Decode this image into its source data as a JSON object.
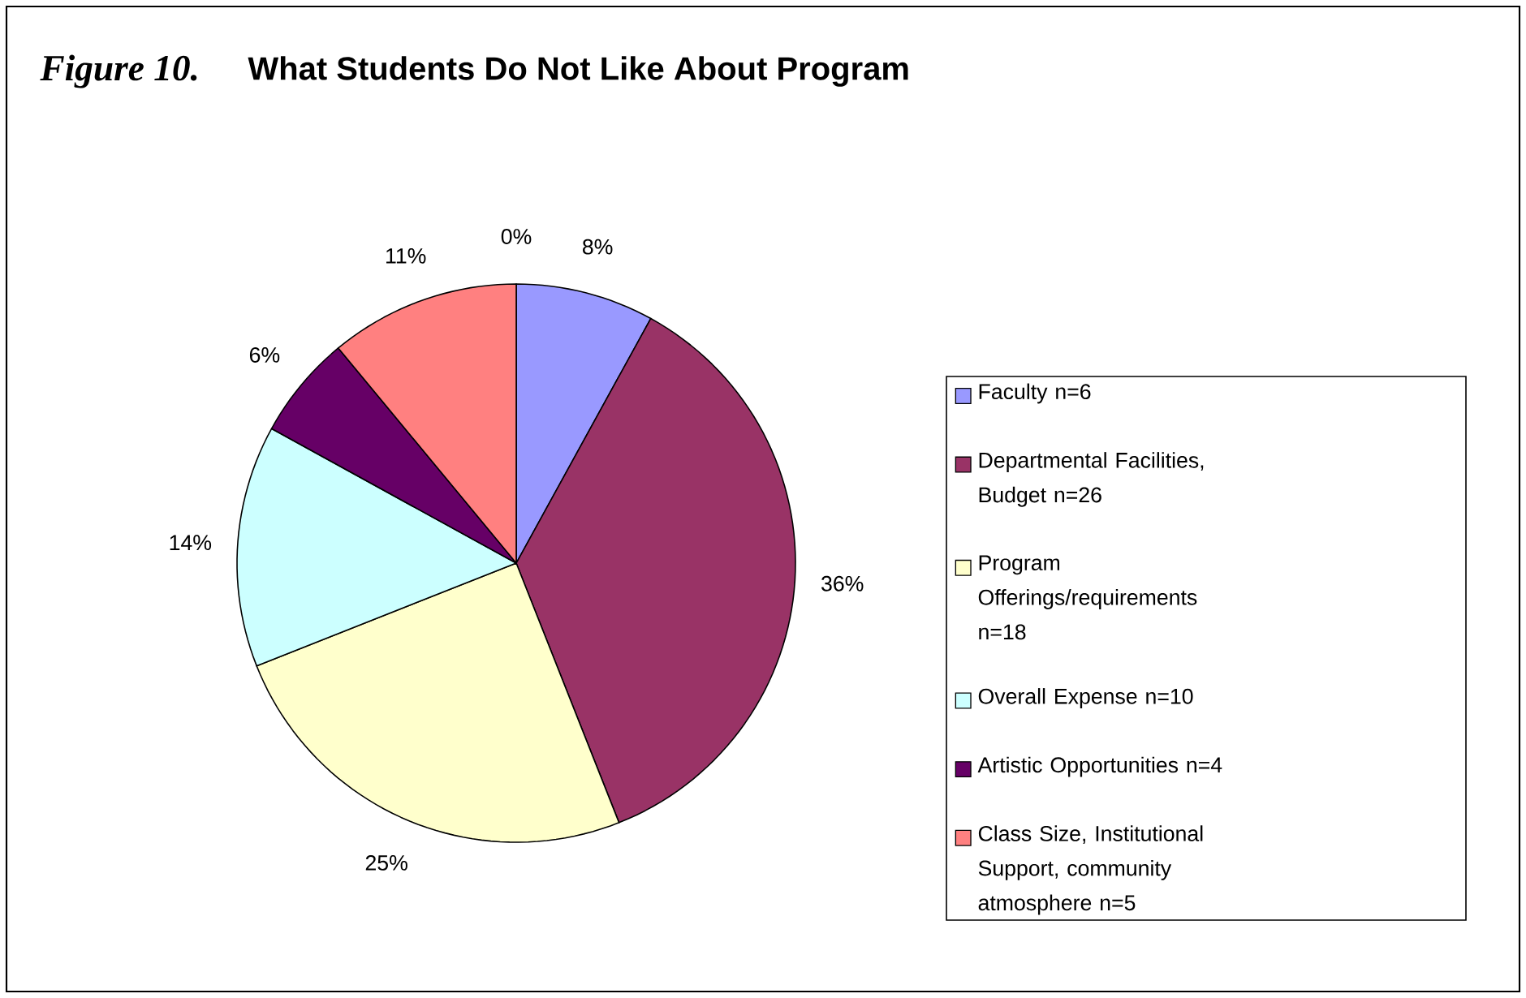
{
  "chart_data": {
    "type": "pie",
    "title": "What Students Do Not Like About Program",
    "annotations": [
      "Figure 10."
    ],
    "categories": [
      "Faculty n=6",
      "Departmental Facilities, Budget n=26",
      "Program Offerings/requirements n=18",
      "Overall Expense n=10",
      "Artistic Opportunities n=4",
      "Class Size, Institutional Support, community atmosphere n=5",
      null
    ],
    "values": [
      8,
      36,
      25,
      14,
      6,
      11,
      0
    ],
    "value_labels": [
      "8%",
      "36%",
      "25%",
      "14%",
      "6%",
      "11%",
      "0%"
    ],
    "colors": [
      "#9999ff",
      "#993366",
      "#ffffcc",
      "#ccffff",
      "#660066",
      "#ff8080",
      "#ffffff"
    ],
    "legend": "right"
  }
}
